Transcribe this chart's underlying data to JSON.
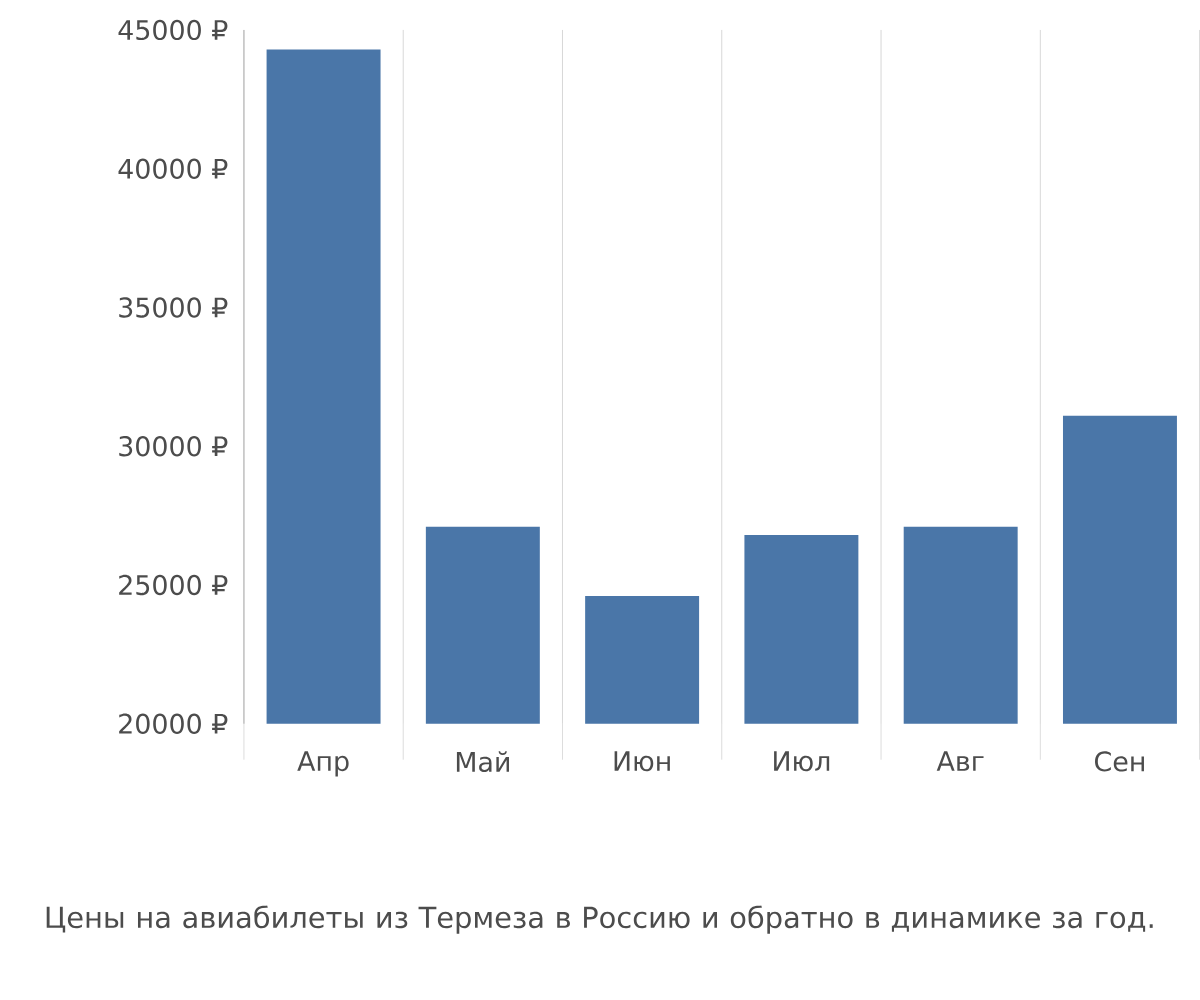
{
  "chart_data": {
    "type": "bar",
    "categories": [
      "Апр",
      "Май",
      "Июн",
      "Июл",
      "Авг",
      "Сен"
    ],
    "values": [
      44300,
      27100,
      24600,
      26800,
      27100,
      31100
    ],
    "color": "#4a76a8",
    "ylim": [
      20000,
      45000
    ],
    "yticks": [
      {
        "value": 20000,
        "label": "20000 ₽"
      },
      {
        "value": 25000,
        "label": "25000 ₽"
      },
      {
        "value": 30000,
        "label": "30000 ₽"
      },
      {
        "value": 35000,
        "label": "35000 ₽"
      },
      {
        "value": 40000,
        "label": "40000 ₽"
      },
      {
        "value": 45000,
        "label": "45000 ₽"
      }
    ],
    "grid": "x",
    "annotations": [
      "Цены на авиабилеты из Термеза в Россию и обратно в динамике за год."
    ]
  }
}
